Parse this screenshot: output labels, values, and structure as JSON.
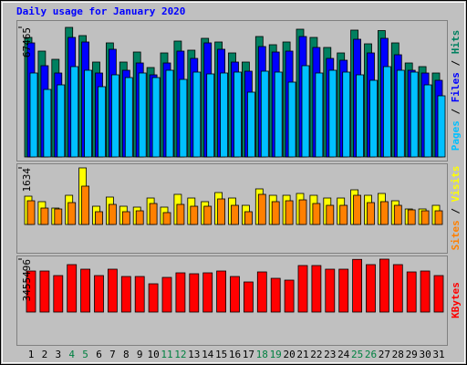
{
  "chart_data": [
    {
      "type": "bar",
      "title": "Daily usage for January 2020",
      "legend_separator": " / ",
      "ylim": [
        0,
        67465
      ],
      "yticks": [
        67465
      ],
      "series": [
        {
          "name": "Pages",
          "color": "#00c0ff",
          "values": [
            43709,
            35157,
            37532,
            47035,
            45134,
            36582,
            42759,
            41333,
            43709,
            41333,
            45134,
            40383,
            44184,
            43234,
            43709,
            44184,
            33732,
            44660,
            44184,
            38958,
            47510,
            43709,
            45134,
            44184,
            42759,
            39908,
            47035,
            45134,
            44184,
            37532,
            31831
          ]
        },
        {
          "name": "Files",
          "color": "#0000ff",
          "values": [
            59388,
            47510,
            43709,
            62238,
            59863,
            43709,
            56062,
            45134,
            48935,
            42759,
            48935,
            55112,
            51311,
            59388,
            56062,
            49410,
            44660,
            57487,
            54637,
            55112,
            62713,
            57012,
            51311,
            50361,
            61288,
            54161,
            61763,
            53211,
            45134,
            43709,
            39908
          ]
        },
        {
          "name": "Hits",
          "color": "#008060",
          "values": [
            62238,
            55112,
            50836,
            67465,
            63188,
            49410,
            59388,
            49410,
            54637,
            46560,
            54161,
            60338,
            55587,
            61763,
            59863,
            54161,
            49410,
            62713,
            58437,
            59863,
            66515,
            62238,
            57012,
            54161,
            66039,
            58912,
            65800,
            59388,
            48935,
            47035,
            43709
          ]
        }
      ]
    },
    {
      "type": "bar",
      "legend_separator": " / ",
      "ylim": [
        0,
        1634
      ],
      "yticks": [
        1634
      ],
      "series": [
        {
          "name": "Sites",
          "color": "#ff8000",
          "values": [
            685,
            474,
            448,
            632,
            1107,
            369,
            580,
            369,
            395,
            606,
            343,
            580,
            527,
            527,
            738,
            553,
            369,
            870,
            659,
            685,
            711,
            606,
            553,
            553,
            843,
            632,
            659,
            553,
            422,
            395,
            395
          ]
        },
        {
          "name": "Visits",
          "color": "#ffff00",
          "values": [
            817,
            659,
            474,
            843,
            1634,
            527,
            791,
            527,
            501,
            764,
            501,
            870,
            764,
            659,
            922,
            764,
            553,
            1028,
            843,
            843,
            896,
            843,
            764,
            764,
            1001,
            843,
            896,
            685,
            448,
            448,
            553
          ]
        }
      ]
    },
    {
      "type": "bar",
      "ylim": [
        0,
        3455496
      ],
      "yticks": [
        3455496
      ],
      "categories": [
        "1",
        "2",
        "3",
        "4",
        "5",
        "6",
        "7",
        "8",
        "9",
        "10",
        "11",
        "12",
        "13",
        "14",
        "15",
        "16",
        "17",
        "18",
        "19",
        "20",
        "21",
        "22",
        "23",
        "24",
        "25",
        "26",
        "27",
        "28",
        "29",
        "30",
        "31"
      ],
      "category_colors": [
        "#000000",
        "#000000",
        "#000000",
        "#008040",
        "#008040",
        "#000000",
        "#000000",
        "#000000",
        "#000000",
        "#000000",
        "#008040",
        "#008040",
        "#000000",
        "#000000",
        "#000000",
        "#000000",
        "#000000",
        "#008040",
        "#008040",
        "#000000",
        "#000000",
        "#000000",
        "#000000",
        "#000000",
        "#008040",
        "#008040",
        "#000000",
        "#000000",
        "#000000",
        "#000000",
        "#000000"
      ],
      "series": [
        {
          "name": "KBytes",
          "color": "#ff0000",
          "values": [
            2681010,
            2681010,
            2383120,
            3098056,
            2800166,
            2383120,
            2800166,
            2323542,
            2323542,
            1846918,
            2263964,
            2561854,
            2502276,
            2561854,
            2681010,
            2323542,
            1966074,
            2621432,
            2204386,
            2085230,
            3038478,
            3038478,
            2800166,
            2800166,
            3440000,
            3098056,
            3455496,
            3098056,
            2621432,
            2681010,
            2383120
          ]
        }
      ]
    }
  ]
}
